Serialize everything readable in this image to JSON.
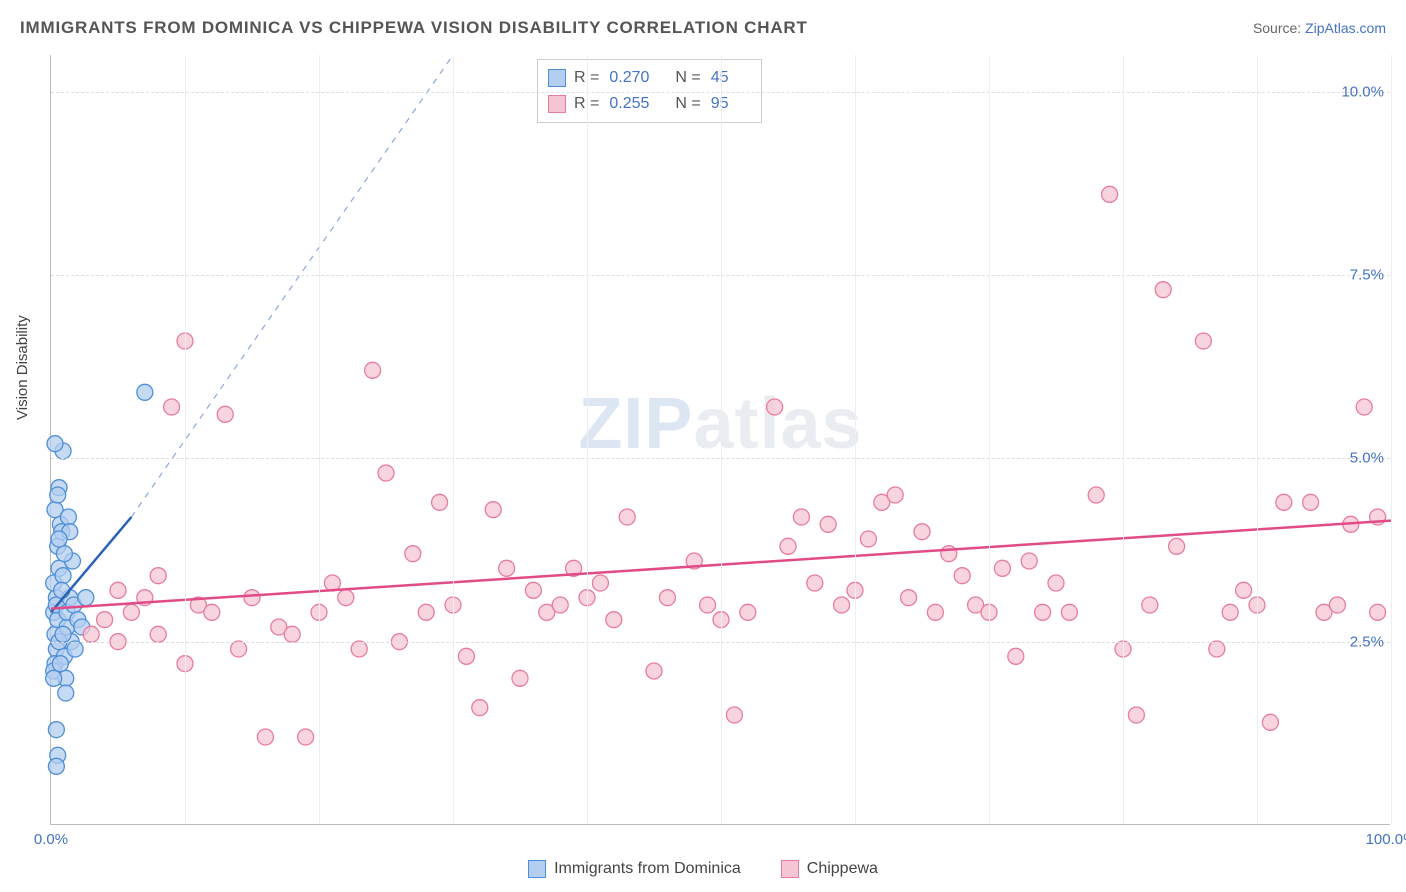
{
  "title": "IMMIGRANTS FROM DOMINICA VS CHIPPEWA VISION DISABILITY CORRELATION CHART",
  "source_label": "Source: ",
  "source_name": "ZipAtlas.com",
  "ylabel": "Vision Disability",
  "watermark_a": "ZIP",
  "watermark_b": "atlas",
  "chart": {
    "type": "scatter",
    "xlim": [
      0,
      100
    ],
    "ylim": [
      0,
      10.5
    ],
    "yticks": [
      {
        "v": 2.5,
        "label": "2.5%"
      },
      {
        "v": 5.0,
        "label": "5.0%"
      },
      {
        "v": 7.5,
        "label": "7.5%"
      },
      {
        "v": 10.0,
        "label": "10.0%"
      }
    ],
    "xticks_label_left": "0.0%",
    "xticks_label_right": "100.0%",
    "xgrid": [
      10,
      20,
      30,
      40,
      50,
      60,
      70,
      80,
      90,
      100
    ],
    "background_color": "#ffffff",
    "grid_color": "#dddddd",
    "marker_radius": 8,
    "marker_stroke_width": 1.3,
    "series": [
      {
        "key": "dominica",
        "label": "Immigrants from Dominica",
        "fill": "#b3cef0",
        "stroke": "#4e8fd8",
        "line_color": "#2b63b8",
        "line_dash_extend": true,
        "R": "0.270",
        "N": "45",
        "trend": {
          "x1": 0,
          "y1": 2.9,
          "x2": 6,
          "y2": 4.2,
          "extend_to_x": 30,
          "extend_to_y": 10.5
        },
        "points": [
          [
            0.2,
            2.9
          ],
          [
            0.3,
            2.6
          ],
          [
            0.4,
            2.4
          ],
          [
            0.3,
            2.2
          ],
          [
            0.5,
            2.8
          ],
          [
            0.4,
            3.1
          ],
          [
            0.2,
            3.3
          ],
          [
            0.6,
            3.5
          ],
          [
            0.5,
            3.8
          ],
          [
            0.4,
            3.0
          ],
          [
            0.7,
            4.1
          ],
          [
            0.3,
            4.3
          ],
          [
            0.6,
            4.6
          ],
          [
            0.2,
            2.1
          ],
          [
            0.4,
            1.3
          ],
          [
            0.5,
            0.95
          ],
          [
            0.4,
            0.8
          ],
          [
            1.2,
            2.7
          ],
          [
            1.0,
            2.3
          ],
          [
            1.4,
            3.1
          ],
          [
            1.6,
            3.6
          ],
          [
            1.2,
            2.9
          ],
          [
            1.5,
            2.5
          ],
          [
            0.9,
            5.1
          ],
          [
            0.3,
            5.2
          ],
          [
            0.8,
            4.0
          ],
          [
            0.9,
            3.4
          ],
          [
            1.1,
            2.0
          ],
          [
            1.3,
            4.2
          ],
          [
            1.7,
            3.0
          ],
          [
            2.0,
            2.8
          ],
          [
            2.3,
            2.7
          ],
          [
            2.6,
            3.1
          ],
          [
            0.6,
            2.5
          ],
          [
            0.7,
            2.2
          ],
          [
            1.0,
            3.7
          ],
          [
            0.5,
            4.5
          ],
          [
            1.8,
            2.4
          ],
          [
            1.1,
            1.8
          ],
          [
            0.9,
            2.6
          ],
          [
            7.0,
            5.9
          ],
          [
            1.4,
            4.0
          ],
          [
            0.8,
            3.2
          ],
          [
            0.2,
            2.0
          ],
          [
            0.6,
            3.9
          ]
        ]
      },
      {
        "key": "chippewa",
        "label": "Chippewa",
        "fill": "#f6c6d4",
        "stroke": "#e87ba0",
        "line_color": "#e14b86",
        "line_dash_extend": false,
        "R": "0.255",
        "N": "95",
        "trend": {
          "x1": 0,
          "y1": 2.95,
          "x2": 100,
          "y2": 4.15
        },
        "points": [
          [
            3,
            2.6
          ],
          [
            4,
            2.8
          ],
          [
            5,
            2.5
          ],
          [
            5,
            3.2
          ],
          [
            6,
            2.9
          ],
          [
            7,
            3.1
          ],
          [
            8,
            3.4
          ],
          [
            8,
            2.6
          ],
          [
            9,
            5.7
          ],
          [
            10,
            2.2
          ],
          [
            10,
            6.6
          ],
          [
            11,
            3.0
          ],
          [
            12,
            2.9
          ],
          [
            13,
            5.6
          ],
          [
            14,
            2.4
          ],
          [
            15,
            3.1
          ],
          [
            16,
            1.2
          ],
          [
            17,
            2.7
          ],
          [
            18,
            2.6
          ],
          [
            19,
            1.2
          ],
          [
            20,
            2.9
          ],
          [
            21,
            3.3
          ],
          [
            22,
            3.1
          ],
          [
            23,
            2.4
          ],
          [
            24,
            6.2
          ],
          [
            25,
            4.8
          ],
          [
            26,
            2.5
          ],
          [
            27,
            3.7
          ],
          [
            28,
            2.9
          ],
          [
            29,
            4.4
          ],
          [
            30,
            3.0
          ],
          [
            31,
            2.3
          ],
          [
            32,
            1.6
          ],
          [
            33,
            4.3
          ],
          [
            34,
            3.5
          ],
          [
            35,
            2.0
          ],
          [
            36,
            3.2
          ],
          [
            37,
            2.9
          ],
          [
            38,
            3.0
          ],
          [
            39,
            3.5
          ],
          [
            40,
            3.1
          ],
          [
            41,
            3.3
          ],
          [
            42,
            2.8
          ],
          [
            43,
            4.2
          ],
          [
            45,
            2.1
          ],
          [
            46,
            3.1
          ],
          [
            48,
            3.6
          ],
          [
            49,
            3.0
          ],
          [
            50,
            2.8
          ],
          [
            51,
            1.5
          ],
          [
            52,
            2.9
          ],
          [
            54,
            5.7
          ],
          [
            55,
            3.8
          ],
          [
            56,
            4.2
          ],
          [
            57,
            3.3
          ],
          [
            58,
            4.1
          ],
          [
            59,
            3.0
          ],
          [
            60,
            3.2
          ],
          [
            61,
            3.9
          ],
          [
            62,
            4.4
          ],
          [
            63,
            4.5
          ],
          [
            64,
            3.1
          ],
          [
            65,
            4.0
          ],
          [
            66,
            2.9
          ],
          [
            67,
            3.7
          ],
          [
            68,
            3.4
          ],
          [
            69,
            3.0
          ],
          [
            70,
            2.9
          ],
          [
            71,
            3.5
          ],
          [
            72,
            2.3
          ],
          [
            73,
            3.6
          ],
          [
            74,
            2.9
          ],
          [
            75,
            3.3
          ],
          [
            76,
            2.9
          ],
          [
            78,
            4.5
          ],
          [
            79,
            8.6
          ],
          [
            80,
            2.4
          ],
          [
            81,
            1.5
          ],
          [
            82,
            3.0
          ],
          [
            83,
            7.3
          ],
          [
            84,
            3.8
          ],
          [
            86,
            6.6
          ],
          [
            87,
            2.4
          ],
          [
            88,
            2.9
          ],
          [
            89,
            3.2
          ],
          [
            90,
            3.0
          ],
          [
            91,
            1.4
          ],
          [
            92,
            4.4
          ],
          [
            94,
            4.4
          ],
          [
            95,
            2.9
          ],
          [
            96,
            3.0
          ],
          [
            97,
            4.1
          ],
          [
            98,
            5.7
          ],
          [
            99,
            2.9
          ],
          [
            99,
            4.2
          ]
        ]
      }
    ]
  },
  "legend_stat_label_R": "R =",
  "legend_stat_label_N": "N ="
}
